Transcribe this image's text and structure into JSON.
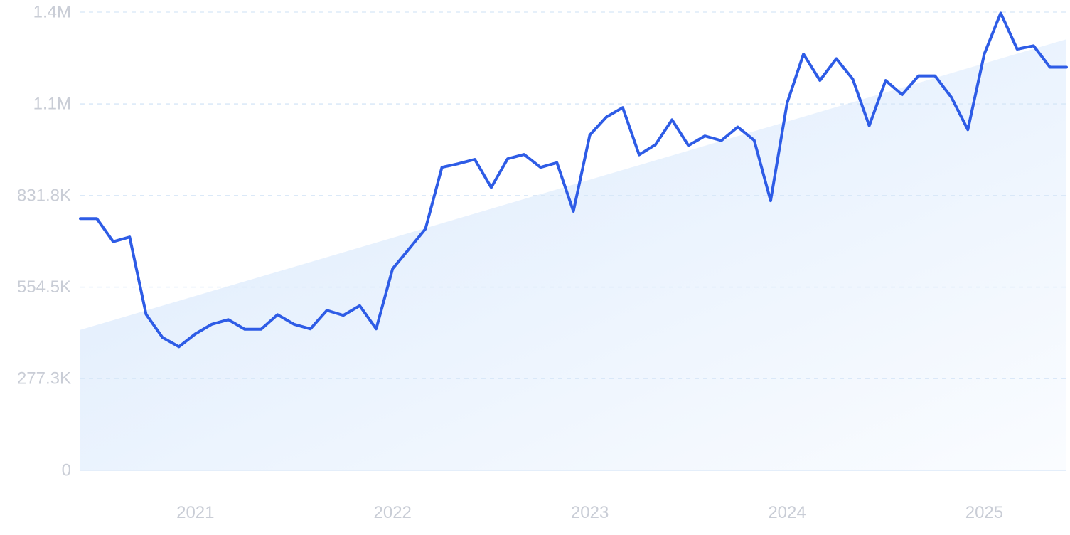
{
  "colors": {
    "line": "#2e5ce6",
    "trend_fill_start": "#dbeafc",
    "trend_fill_end": "#fafcff",
    "grid": "#d6e6f7",
    "tick_text": "#c9cdd6"
  },
  "chart_data": {
    "type": "line",
    "title": "",
    "xlabel": "",
    "ylabel": "",
    "grid": true,
    "legend": "none",
    "ylim": [
      0,
      1387000
    ],
    "xlim": [
      "2020-06",
      "2025-06"
    ],
    "y_ticks": [
      {
        "value": 0,
        "label": "0"
      },
      {
        "value": 277300,
        "label": "277.3K"
      },
      {
        "value": 554500,
        "label": "554.5K"
      },
      {
        "value": 831800,
        "label": "831.8K"
      },
      {
        "value": 1109000,
        "label": "1.1M"
      },
      {
        "value": 1387000,
        "label": "1.4M"
      }
    ],
    "x_ticks": [
      {
        "date": "2021-01",
        "label": "2021"
      },
      {
        "date": "2022-01",
        "label": "2022"
      },
      {
        "date": "2023-01",
        "label": "2023"
      },
      {
        "date": "2024-01",
        "label": "2024"
      },
      {
        "date": "2025-01",
        "label": "2025"
      }
    ],
    "trend": {
      "type": "area",
      "start": {
        "date": "2020-06",
        "value": 425000
      },
      "end": {
        "date": "2025-06",
        "value": 1305000
      }
    },
    "series": [
      {
        "x": [
          "2020-06",
          "2020-07",
          "2020-08",
          "2020-09",
          "2020-10",
          "2020-11",
          "2020-12",
          "2021-01",
          "2021-02",
          "2021-03",
          "2021-04",
          "2021-05",
          "2021-06",
          "2021-07",
          "2021-08",
          "2021-09",
          "2021-10",
          "2021-11",
          "2021-12",
          "2022-01",
          "2022-02",
          "2022-03",
          "2022-04",
          "2022-05",
          "2022-06",
          "2022-07",
          "2022-08",
          "2022-09",
          "2022-10",
          "2022-11",
          "2022-12",
          "2023-01",
          "2023-02",
          "2023-03",
          "2023-04",
          "2023-05",
          "2023-06",
          "2023-07",
          "2023-08",
          "2023-09",
          "2023-10",
          "2023-11",
          "2023-12",
          "2024-01",
          "2024-02",
          "2024-03",
          "2024-04",
          "2024-05",
          "2024-06",
          "2024-07",
          "2024-08",
          "2024-09",
          "2024-10",
          "2024-11",
          "2024-12",
          "2025-01",
          "2025-02",
          "2025-03",
          "2025-04",
          "2025-05",
          "2025-06"
        ],
        "values": [
          762000,
          762000,
          692000,
          706000,
          472000,
          402000,
          374000,
          413000,
          442000,
          456000,
          427000,
          427000,
          471000,
          442000,
          428000,
          484000,
          469000,
          498000,
          428000,
          610000,
          670000,
          731000,
          917000,
          928000,
          941000,
          856000,
          943000,
          956000,
          917000,
          931000,
          784000,
          1015000,
          1069000,
          1098000,
          955000,
          986000,
          1061000,
          983000,
          1012000,
          998000,
          1039000,
          999000,
          816000,
          1111000,
          1260000,
          1180000,
          1246000,
          1184000,
          1043000,
          1180000,
          1137000,
          1194000,
          1194000,
          1129000,
          1031000,
          1260000,
          1384000,
          1275000,
          1285000,
          1220000,
          1220000
        ],
        "color": "#2e5ce6"
      }
    ]
  }
}
